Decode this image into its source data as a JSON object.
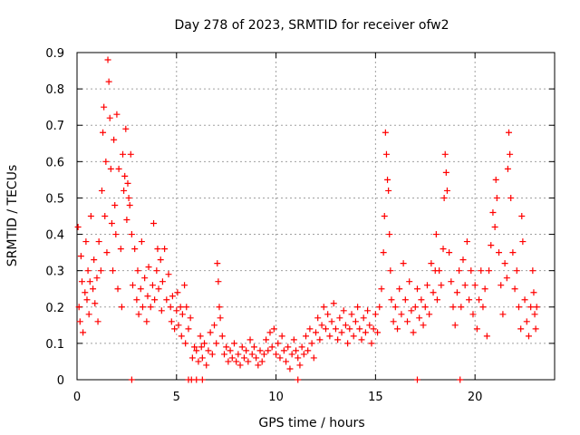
{
  "chart_data": {
    "type": "scatter",
    "title": "Day 278 of 2023, SRMTID for receiver ofw2",
    "xlabel": "GPS time / hours",
    "ylabel": "SRMTID / TECUs",
    "xlim": [
      0,
      24
    ],
    "ylim": [
      0,
      0.9
    ],
    "xticks": [
      0,
      5,
      10,
      15,
      20
    ],
    "yticks": [
      0,
      0.1,
      0.2,
      0.3,
      0.4,
      0.5,
      0.6,
      0.7,
      0.8,
      0.9
    ],
    "xtick_labels": [
      "0",
      "5",
      "10",
      "15",
      "20"
    ],
    "ytick_labels": [
      "0",
      "0.1",
      "0.2",
      "0.3",
      "0.4",
      "0.5",
      "0.6",
      "0.7",
      "0.8",
      "0.9"
    ],
    "grid": true,
    "marker": "+",
    "color": "#ff0000",
    "series": [
      {
        "name": "SRMTID",
        "points": [
          [
            0.05,
            0.42
          ],
          [
            0.1,
            0.2
          ],
          [
            0.15,
            0.16
          ],
          [
            0.2,
            0.34
          ],
          [
            0.25,
            0.27
          ],
          [
            0.3,
            0.13
          ],
          [
            0.4,
            0.24
          ],
          [
            0.45,
            0.38
          ],
          [
            0.5,
            0.22
          ],
          [
            0.55,
            0.3
          ],
          [
            0.6,
            0.18
          ],
          [
            0.65,
            0.27
          ],
          [
            0.7,
            0.45
          ],
          [
            0.8,
            0.25
          ],
          [
            0.85,
            0.33
          ],
          [
            0.9,
            0.21
          ],
          [
            1.0,
            0.28
          ],
          [
            1.05,
            0.16
          ],
          [
            1.1,
            0.38
          ],
          [
            1.2,
            0.3
          ],
          [
            1.25,
            0.52
          ],
          [
            1.3,
            0.68
          ],
          [
            1.35,
            0.75
          ],
          [
            1.4,
            0.45
          ],
          [
            1.45,
            0.6
          ],
          [
            1.5,
            0.35
          ],
          [
            1.55,
            0.88
          ],
          [
            1.6,
            0.82
          ],
          [
            1.65,
            0.72
          ],
          [
            1.7,
            0.58
          ],
          [
            1.75,
            0.43
          ],
          [
            1.8,
            0.3
          ],
          [
            1.85,
            0.66
          ],
          [
            1.9,
            0.48
          ],
          [
            1.95,
            0.4
          ],
          [
            2.0,
            0.73
          ],
          [
            2.05,
            0.25
          ],
          [
            2.1,
            0.58
          ],
          [
            2.2,
            0.36
          ],
          [
            2.25,
            0.2
          ],
          [
            2.3,
            0.62
          ],
          [
            2.35,
            0.52
          ],
          [
            2.4,
            0.56
          ],
          [
            2.45,
            0.69
          ],
          [
            2.5,
            0.44
          ],
          [
            2.55,
            0.54
          ],
          [
            2.6,
            0.5
          ],
          [
            2.65,
            0.48
          ],
          [
            2.7,
            0.62
          ],
          [
            2.75,
            0.4
          ],
          [
            2.8,
            0.26
          ],
          [
            2.9,
            0.36
          ],
          [
            3.0,
            0.22
          ],
          [
            3.05,
            0.3
          ],
          [
            3.1,
            0.18
          ],
          [
            3.2,
            0.25
          ],
          [
            3.25,
            0.38
          ],
          [
            3.3,
            0.2
          ],
          [
            3.4,
            0.28
          ],
          [
            3.5,
            0.16
          ],
          [
            3.55,
            0.23
          ],
          [
            3.6,
            0.31
          ],
          [
            3.7,
            0.2
          ],
          [
            3.8,
            0.26
          ],
          [
            3.85,
            0.43
          ],
          [
            3.9,
            0.22
          ],
          [
            4.0,
            0.3
          ],
          [
            4.05,
            0.36
          ],
          [
            4.1,
            0.25
          ],
          [
            4.2,
            0.33
          ],
          [
            4.25,
            0.19
          ],
          [
            4.3,
            0.27
          ],
          [
            4.4,
            0.36
          ],
          [
            4.5,
            0.22
          ],
          [
            4.6,
            0.29
          ],
          [
            4.7,
            0.2
          ],
          [
            4.75,
            0.16
          ],
          [
            4.8,
            0.23
          ],
          [
            4.9,
            0.14
          ],
          [
            5.0,
            0.19
          ],
          [
            5.05,
            0.24
          ],
          [
            5.1,
            0.15
          ],
          [
            5.2,
            0.2
          ],
          [
            5.25,
            0.12
          ],
          [
            5.3,
            0.18
          ],
          [
            5.4,
            0.26
          ],
          [
            5.45,
            0.1
          ],
          [
            5.5,
            0.2
          ],
          [
            5.6,
            0.14
          ],
          [
            5.7,
            0.17
          ],
          [
            5.8,
            0.06
          ],
          [
            5.9,
            0.09
          ],
          [
            6.0,
            0.08
          ],
          [
            6.1,
            0.05
          ],
          [
            6.2,
            0.12
          ],
          [
            6.25,
            0.09
          ],
          [
            6.3,
            0.06
          ],
          [
            6.4,
            0.1
          ],
          [
            6.5,
            0.04
          ],
          [
            6.6,
            0.08
          ],
          [
            6.7,
            0.13
          ],
          [
            6.8,
            0.07
          ],
          [
            6.9,
            0.15
          ],
          [
            7.0,
            0.1
          ],
          [
            7.05,
            0.32
          ],
          [
            7.1,
            0.27
          ],
          [
            7.15,
            0.2
          ],
          [
            7.2,
            0.17
          ],
          [
            7.3,
            0.12
          ],
          [
            7.4,
            0.07
          ],
          [
            7.5,
            0.09
          ],
          [
            7.6,
            0.05
          ],
          [
            7.7,
            0.08
          ],
          [
            7.8,
            0.06
          ],
          [
            7.9,
            0.1
          ],
          [
            8.0,
            0.05
          ],
          [
            8.1,
            0.07
          ],
          [
            8.2,
            0.04
          ],
          [
            8.3,
            0.09
          ],
          [
            8.4,
            0.06
          ],
          [
            8.5,
            0.08
          ],
          [
            8.6,
            0.05
          ],
          [
            8.7,
            0.11
          ],
          [
            8.8,
            0.07
          ],
          [
            8.9,
            0.09
          ],
          [
            9.0,
            0.06
          ],
          [
            9.1,
            0.04
          ],
          [
            9.2,
            0.08
          ],
          [
            9.3,
            0.05
          ],
          [
            9.4,
            0.07
          ],
          [
            9.5,
            0.11
          ],
          [
            9.6,
            0.08
          ],
          [
            9.7,
            0.13
          ],
          [
            9.8,
            0.09
          ],
          [
            9.9,
            0.14
          ],
          [
            10.0,
            0.07
          ],
          [
            10.1,
            0.1
          ],
          [
            10.2,
            0.06
          ],
          [
            10.3,
            0.12
          ],
          [
            10.4,
            0.08
          ],
          [
            10.5,
            0.05
          ],
          [
            10.6,
            0.09
          ],
          [
            10.7,
            0.03
          ],
          [
            10.8,
            0.07
          ],
          [
            10.9,
            0.11
          ],
          [
            11.0,
            0.08
          ],
          [
            11.1,
            0.06
          ],
          [
            11.2,
            0.04
          ],
          [
            11.3,
            0.09
          ],
          [
            11.4,
            0.07
          ],
          [
            11.5,
            0.12
          ],
          [
            11.6,
            0.08
          ],
          [
            11.7,
            0.14
          ],
          [
            11.8,
            0.1
          ],
          [
            11.9,
            0.06
          ],
          [
            12.0,
            0.13
          ],
          [
            12.1,
            0.17
          ],
          [
            12.2,
            0.11
          ],
          [
            12.3,
            0.15
          ],
          [
            12.4,
            0.2
          ],
          [
            12.5,
            0.14
          ],
          [
            12.6,
            0.18
          ],
          [
            12.7,
            0.12
          ],
          [
            12.8,
            0.16
          ],
          [
            12.9,
            0.21
          ],
          [
            13.0,
            0.14
          ],
          [
            13.1,
            0.11
          ],
          [
            13.2,
            0.17
          ],
          [
            13.3,
            0.13
          ],
          [
            13.4,
            0.19
          ],
          [
            13.5,
            0.15
          ],
          [
            13.6,
            0.1
          ],
          [
            13.7,
            0.14
          ],
          [
            13.8,
            0.18
          ],
          [
            13.9,
            0.12
          ],
          [
            14.0,
            0.16
          ],
          [
            14.1,
            0.2
          ],
          [
            14.2,
            0.14
          ],
          [
            14.3,
            0.11
          ],
          [
            14.4,
            0.17
          ],
          [
            14.5,
            0.13
          ],
          [
            14.6,
            0.19
          ],
          [
            14.7,
            0.15
          ],
          [
            14.8,
            0.1
          ],
          [
            14.9,
            0.14
          ],
          [
            15.0,
            0.18
          ],
          [
            15.1,
            0.13
          ],
          [
            15.2,
            0.2
          ],
          [
            15.3,
            0.25
          ],
          [
            15.4,
            0.35
          ],
          [
            15.45,
            0.45
          ],
          [
            15.5,
            0.68
          ],
          [
            15.55,
            0.62
          ],
          [
            15.6,
            0.55
          ],
          [
            15.65,
            0.52
          ],
          [
            15.7,
            0.4
          ],
          [
            15.75,
            0.3
          ],
          [
            15.8,
            0.22
          ],
          [
            15.9,
            0.16
          ],
          [
            16.0,
            0.2
          ],
          [
            16.1,
            0.14
          ],
          [
            16.2,
            0.25
          ],
          [
            16.3,
            0.18
          ],
          [
            16.4,
            0.32
          ],
          [
            16.5,
            0.22
          ],
          [
            16.6,
            0.16
          ],
          [
            16.7,
            0.27
          ],
          [
            16.8,
            0.19
          ],
          [
            16.9,
            0.13
          ],
          [
            17.0,
            0.2
          ],
          [
            17.1,
            0.25
          ],
          [
            17.2,
            0.17
          ],
          [
            17.3,
            0.22
          ],
          [
            17.4,
            0.15
          ],
          [
            17.5,
            0.2
          ],
          [
            17.6,
            0.26
          ],
          [
            17.7,
            0.18
          ],
          [
            17.8,
            0.32
          ],
          [
            17.9,
            0.24
          ],
          [
            18.0,
            0.3
          ],
          [
            18.05,
            0.4
          ],
          [
            18.1,
            0.22
          ],
          [
            18.2,
            0.3
          ],
          [
            18.3,
            0.26
          ],
          [
            18.4,
            0.36
          ],
          [
            18.45,
            0.5
          ],
          [
            18.5,
            0.62
          ],
          [
            18.55,
            0.57
          ],
          [
            18.6,
            0.52
          ],
          [
            18.7,
            0.35
          ],
          [
            18.8,
            0.27
          ],
          [
            18.9,
            0.2
          ],
          [
            19.0,
            0.15
          ],
          [
            19.1,
            0.24
          ],
          [
            19.2,
            0.3
          ],
          [
            19.3,
            0.2
          ],
          [
            19.4,
            0.33
          ],
          [
            19.5,
            0.26
          ],
          [
            19.6,
            0.38
          ],
          [
            19.7,
            0.22
          ],
          [
            19.8,
            0.3
          ],
          [
            19.9,
            0.18
          ],
          [
            20.0,
            0.26
          ],
          [
            20.1,
            0.14
          ],
          [
            20.2,
            0.22
          ],
          [
            20.3,
            0.3
          ],
          [
            20.4,
            0.2
          ],
          [
            20.5,
            0.25
          ],
          [
            20.6,
            0.12
          ],
          [
            20.7,
            0.3
          ],
          [
            20.8,
            0.37
          ],
          [
            20.9,
            0.46
          ],
          [
            21.0,
            0.42
          ],
          [
            21.05,
            0.55
          ],
          [
            21.1,
            0.5
          ],
          [
            21.2,
            0.35
          ],
          [
            21.3,
            0.26
          ],
          [
            21.4,
            0.18
          ],
          [
            21.5,
            0.32
          ],
          [
            21.6,
            0.28
          ],
          [
            21.65,
            0.58
          ],
          [
            21.7,
            0.68
          ],
          [
            21.75,
            0.62
          ],
          [
            21.8,
            0.5
          ],
          [
            21.9,
            0.35
          ],
          [
            22.0,
            0.25
          ],
          [
            22.1,
            0.3
          ],
          [
            22.2,
            0.2
          ],
          [
            22.3,
            0.14
          ],
          [
            22.35,
            0.45
          ],
          [
            22.4,
            0.38
          ],
          [
            22.5,
            0.22
          ],
          [
            22.6,
            0.16
          ],
          [
            22.7,
            0.12
          ],
          [
            22.8,
            0.2
          ],
          [
            22.9,
            0.3
          ],
          [
            22.95,
            0.24
          ],
          [
            23.0,
            0.18
          ],
          [
            23.05,
            0.14
          ],
          [
            23.1,
            0.2
          ]
        ]
      },
      {
        "name": "zero markers",
        "points": [
          [
            2.75,
            0
          ],
          [
            5.6,
            0
          ],
          [
            5.75,
            0
          ],
          [
            6.0,
            0
          ],
          [
            6.3,
            0
          ],
          [
            11.1,
            0
          ],
          [
            17.1,
            0
          ],
          [
            19.25,
            0
          ]
        ]
      }
    ]
  }
}
